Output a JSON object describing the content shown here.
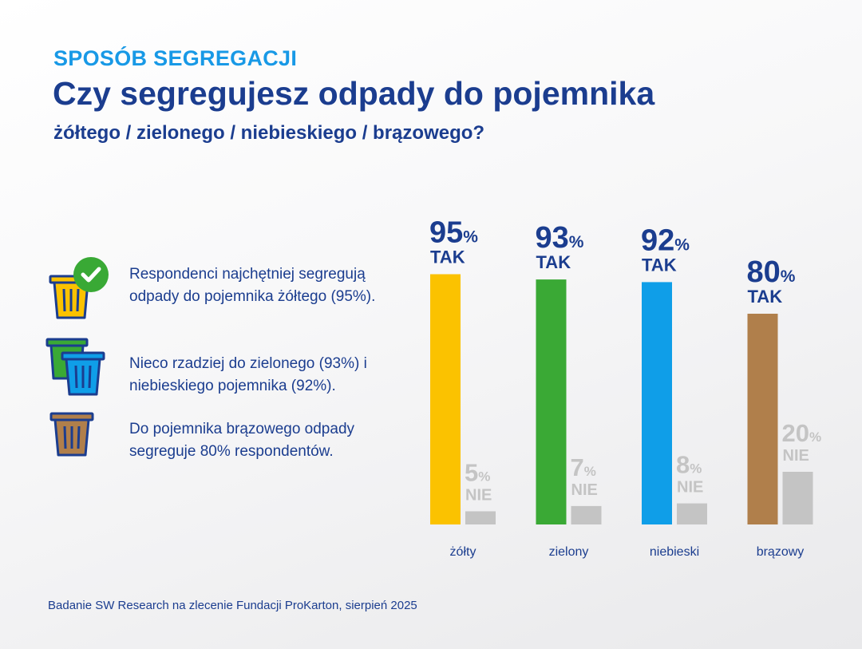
{
  "header": {
    "kicker": "SPOSÓB SEGREGACJI",
    "title": "Czy segregujesz odpady do pojemnika",
    "subtitle": "żółtego / zielonego / niebieskiego / brązowego?"
  },
  "notes": [
    {
      "text": "Respondenci najchętniej segregują odpady do pojemnika żółtego (95%)."
    },
    {
      "text": "Nieco rzadziej do zielonego (93%) i niebieskiego pojemnika (92%)."
    },
    {
      "text": "Do pojemnika brązowego odpady segreguje 80% respondentów."
    }
  ],
  "icons": [
    "yellow-bin-with-check-icon",
    "green-and-blue-bins-icon",
    "brown-bin-icon"
  ],
  "colors": {
    "zolty": "#fbc200",
    "zielony": "#3aa935",
    "niebieski": "#0f9ee8",
    "brazowy": "#b07f4b",
    "nie": "#c4c4c4",
    "check": "#39a935",
    "navy": "#1b3d8f",
    "kicker": "#1899e6"
  },
  "chart_data": {
    "type": "bar",
    "categories": [
      "żółty",
      "zielony",
      "niebieski",
      "brązowy"
    ],
    "series": [
      {
        "name": "TAK",
        "values": [
          95,
          93,
          92,
          80
        ]
      },
      {
        "name": "NIE",
        "values": [
          5,
          7,
          8,
          20
        ]
      }
    ],
    "unit": "%",
    "ylim": [
      0,
      100
    ],
    "grid": false
  },
  "source": "Badanie SW Research na zlecenie Fundacji ProKarton, sierpień 2025"
}
